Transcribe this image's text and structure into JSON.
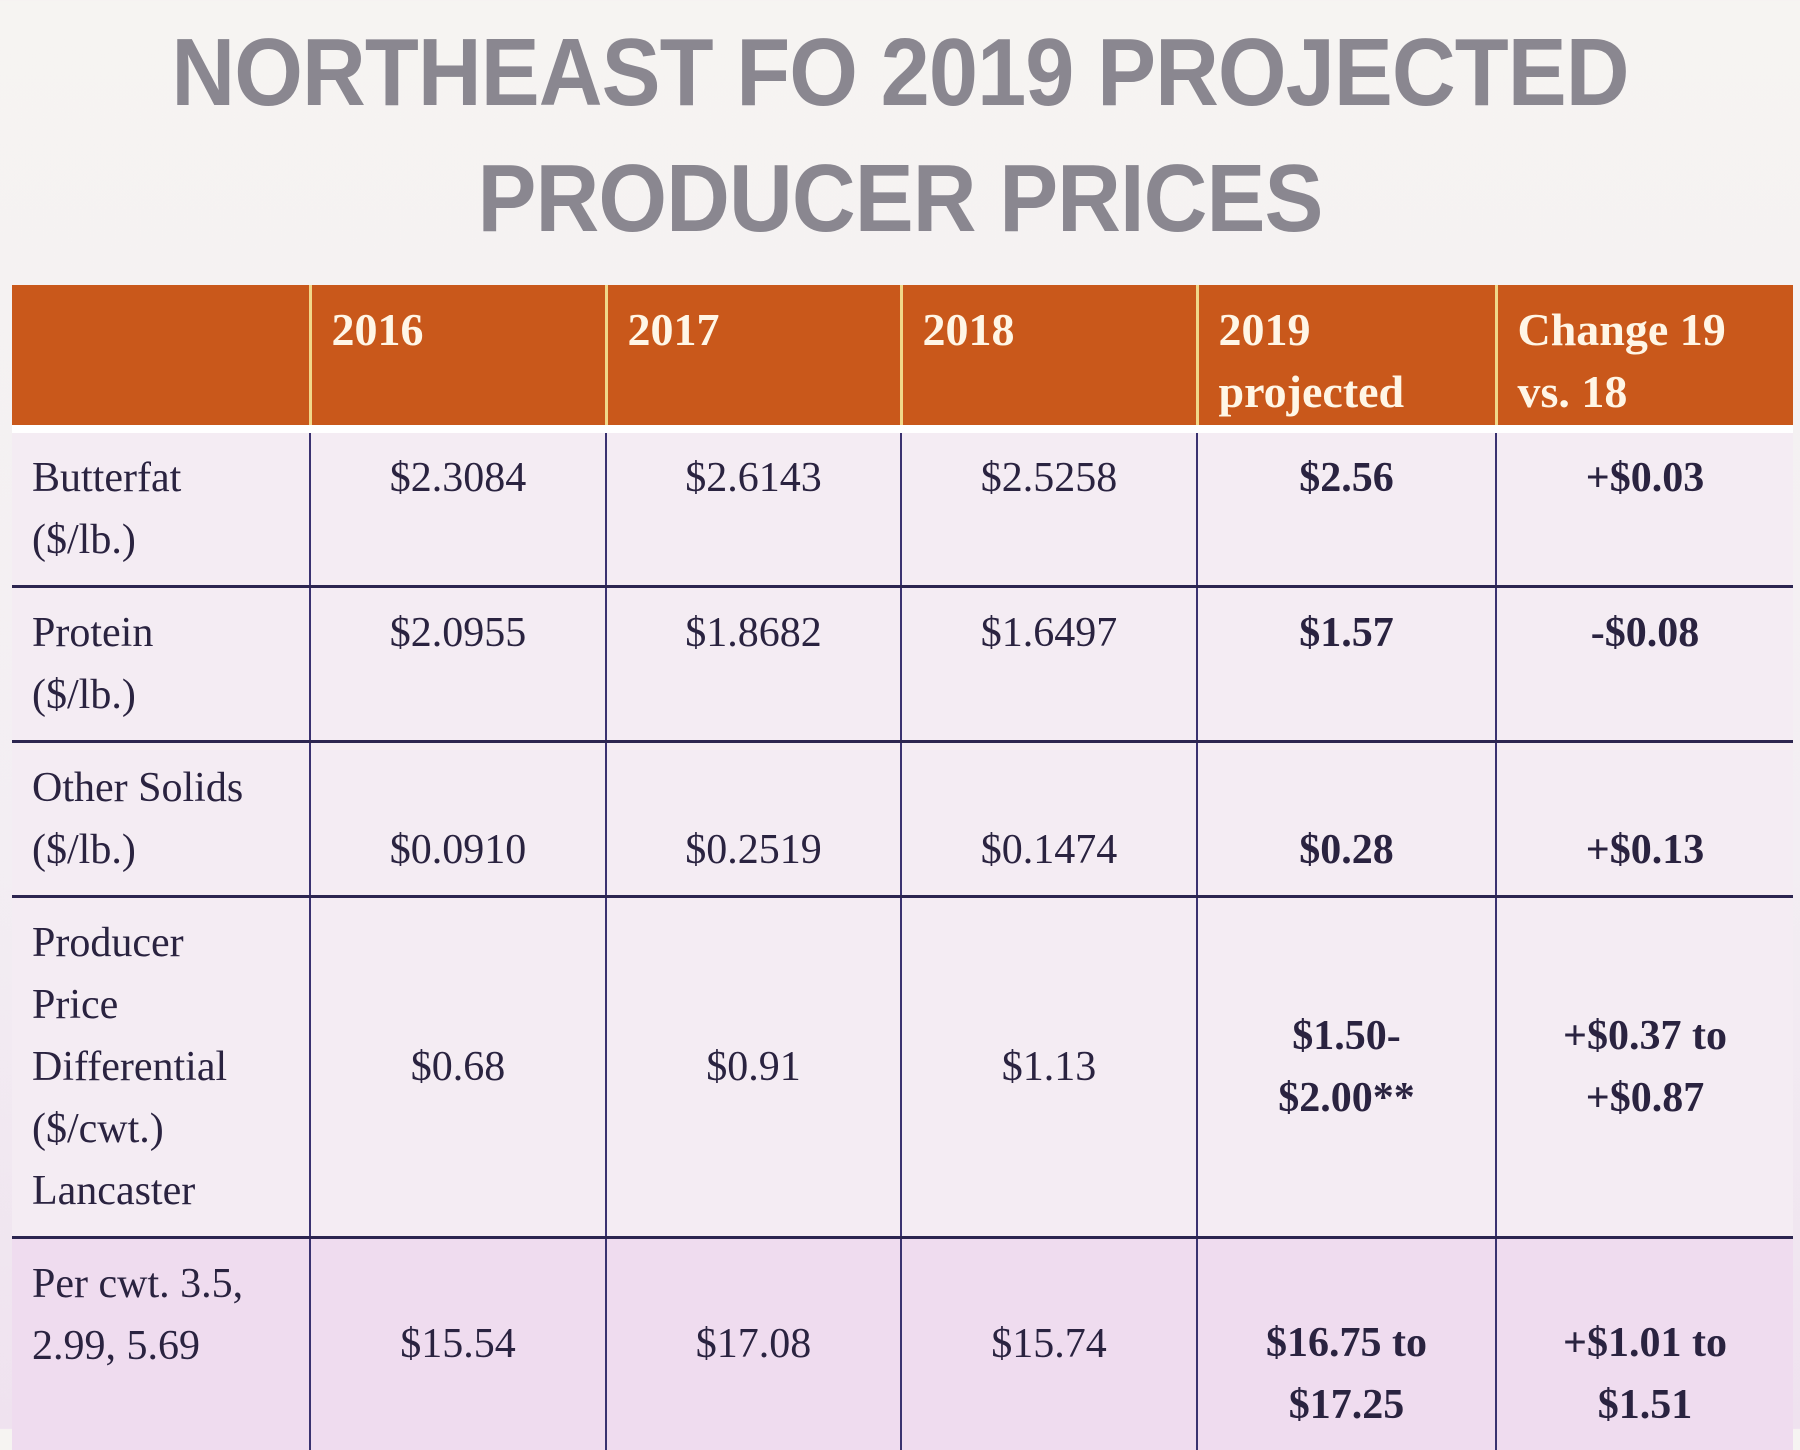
{
  "title": {
    "line1": "NORTHEAST FO 2019 PROJECTED",
    "line2": "PRODUCER PRICES"
  },
  "table": {
    "headers": [
      "",
      "2016",
      "2017",
      "2018",
      "2019 projected",
      "Change 19 vs. 18"
    ],
    "header_lines": {
      "h4a": "2019",
      "h4b": "projected",
      "h5a": "Change 19",
      "h5b": "vs. 18"
    },
    "rows": [
      {
        "label": [
          "Butterfat",
          "($/lb.)"
        ],
        "y2016": "$2.3084",
        "y2017": "$2.6143",
        "y2018": "$2.5258",
        "y2019": [
          "$2.56"
        ],
        "change": [
          "+$0.03"
        ]
      },
      {
        "label": [
          "Protein",
          "($/lb.)"
        ],
        "y2016": "$2.0955",
        "y2017": "$1.8682",
        "y2018": "$1.6497",
        "y2019": [
          "$1.57"
        ],
        "change": [
          "-$0.08"
        ]
      },
      {
        "label": [
          "Other Solids",
          "($/lb.)"
        ],
        "y2016": "$0.0910",
        "y2017": "$0.2519",
        "y2018": "$0.1474",
        "y2019": [
          "$0.28"
        ],
        "change": [
          "+$0.13"
        ]
      },
      {
        "label": [
          "Producer",
          "Price",
          "Differential",
          "($/cwt.)",
          "Lancaster"
        ],
        "y2016": "$0.68",
        "y2017": "$0.91",
        "y2018": "$1.13",
        "y2019": [
          "$1.50-",
          "$2.00**"
        ],
        "change": [
          "+$0.37 to",
          "+$0.87"
        ]
      },
      {
        "label": [
          "Per cwt. 3.5,",
          "2.99, 5.69"
        ],
        "y2016": "$15.54",
        "y2017": "$17.08",
        "y2018": "$15.74",
        "y2019": [
          "$16.75 to",
          "$17.25"
        ],
        "change": [
          "+$1.01 to",
          "$1.51"
        ]
      }
    ]
  },
  "colors": {
    "header": "#c9581b",
    "title": "#8a8790",
    "row": "#f4ecf3"
  }
}
